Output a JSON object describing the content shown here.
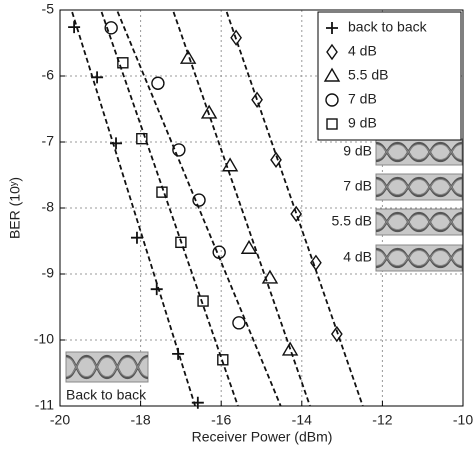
{
  "chart_data": {
    "type": "scatter",
    "xlabel": "Receiver Power (dBm)",
    "ylabel": "BER (10ʸ)",
    "xlim": [
      -20,
      -10
    ],
    "xticks": [
      -20,
      -18,
      -16,
      -14,
      -12,
      -10
    ],
    "ylim": [
      -11,
      -5
    ],
    "yticks": [
      -11,
      -10,
      -9,
      -8,
      -7,
      -6,
      -5
    ],
    "grid": true,
    "fit_lines": true,
    "legend": "upper right",
    "series": [
      {
        "name": "back to back",
        "marker": "plus",
        "color": "#111111",
        "x": [
          -19.65,
          -19.08,
          -18.61,
          -18.09,
          -17.6,
          -17.07,
          -16.58
        ],
        "values": [
          -5.26,
          -6.02,
          -7.02,
          -8.45,
          -9.23,
          -10.21,
          -10.95
        ]
      },
      {
        "name": "4 dB",
        "marker": "diamond",
        "color": "#111111",
        "x": [
          -15.63,
          -15.11,
          -14.64,
          -14.14,
          -13.65,
          -13.13
        ],
        "values": [
          -5.42,
          -6.36,
          -7.27,
          -8.09,
          -8.83,
          -9.91
        ]
      },
      {
        "name": "5.5 dB",
        "marker": "triangle",
        "color": "#111111",
        "x": [
          -16.82,
          -16.3,
          -15.78,
          -15.31,
          -14.79,
          -14.29
        ],
        "values": [
          -5.73,
          -6.56,
          -7.36,
          -8.61,
          -9.06,
          -10.15
        ]
      },
      {
        "name": "7 dB",
        "marker": "circle",
        "color": "#111111",
        "x": [
          -18.73,
          -17.57,
          -17.05,
          -16.55,
          -16.05,
          -15.56
        ],
        "values": [
          -5.27,
          -6.11,
          -7.12,
          -7.88,
          -8.67,
          -9.74
        ]
      },
      {
        "name": "9 dB",
        "marker": "square",
        "color": "#111111",
        "x": [
          -18.44,
          -17.97,
          -17.47,
          -17.0,
          -16.45,
          -15.96
        ],
        "values": [
          -5.8,
          -6.95,
          -7.76,
          -8.52,
          -9.41,
          -10.3
        ]
      }
    ],
    "insets": [
      {
        "label": "9 dB"
      },
      {
        "label": "7 dB"
      },
      {
        "label": "5.5 dB"
      },
      {
        "label": "4 dB"
      },
      {
        "label": "Back to back"
      }
    ]
  }
}
